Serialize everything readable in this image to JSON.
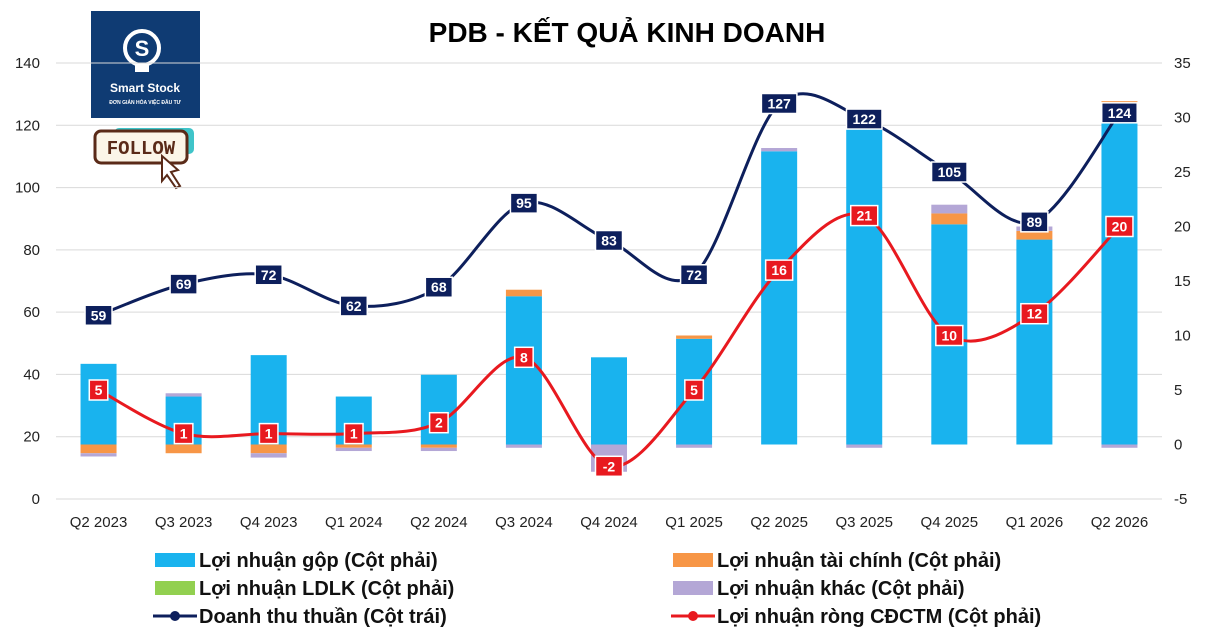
{
  "chart_data": {
    "type": "bar",
    "title": "PDB - KẾT QUẢ KINH DOANH",
    "categories": [
      "Q2 2023",
      "Q3 2023",
      "Q4 2023",
      "Q1 2024",
      "Q2 2024",
      "Q3 2024",
      "Q4 2024",
      "Q1 2025",
      "Q2 2025",
      "Q3 2025",
      "Q4 2025",
      "Q1 2026",
      "Q2 2026"
    ],
    "y_left": {
      "ylim": [
        0,
        140
      ],
      "ticks": [
        0,
        20,
        40,
        60,
        80,
        100,
        120,
        140
      ]
    },
    "y_right": {
      "ylim": [
        -5,
        35
      ],
      "ticks": [
        -5,
        0,
        5,
        10,
        15,
        20,
        25,
        30,
        35
      ]
    },
    "stacked": true,
    "grid": true,
    "legend_position": "bottom",
    "series": [
      {
        "name": "Lợi nhuận gộp (Cột phải)",
        "type": "bar",
        "axis": "right",
        "color": "#19b3ee",
        "values": [
          7.4,
          4.4,
          8.2,
          4.4,
          6.4,
          13.6,
          8.0,
          9.7,
          26.9,
          30.0,
          20.2,
          18.8,
          31.0
        ]
      },
      {
        "name": "Lợi nhuận tài chính (Cột phải)",
        "type": "bar",
        "axis": "right",
        "color": "#f79646",
        "values": [
          -0.8,
          -0.8,
          -0.8,
          -0.3,
          -0.3,
          0.6,
          0.0,
          0.3,
          0.0,
          0.4,
          1.0,
          0.8,
          0.5
        ]
      },
      {
        "name": "Lợi nhuận LDLK (Cột phải)",
        "type": "bar",
        "axis": "right",
        "color": "#92d050",
        "values": [
          0,
          0,
          0,
          0,
          0,
          0,
          0,
          0,
          0,
          0,
          0,
          0,
          0
        ]
      },
      {
        "name": "Lợi nhuận khác (Cột phải)",
        "type": "bar",
        "axis": "right",
        "color": "#b4a7d6",
        "values": [
          -0.3,
          0.3,
          -0.4,
          -0.3,
          -0.3,
          -0.3,
          -2.5,
          -0.3,
          0.3,
          -0.3,
          0.8,
          0.4,
          -0.3
        ]
      },
      {
        "name": "Doanh thu thuần (Cột trái)",
        "type": "line",
        "axis": "left",
        "color": "#0d1f5c",
        "values": [
          59,
          69,
          72,
          62,
          68,
          95,
          83,
          72,
          127,
          122,
          105,
          89,
          124
        ],
        "labels": [
          "59",
          "69",
          "72",
          "62",
          "68",
          "95",
          "83",
          "72",
          "127",
          "122",
          "105",
          "89",
          "124"
        ]
      },
      {
        "name": "Lợi nhuận ròng CĐCTM (Cột phải)",
        "type": "line",
        "axis": "right",
        "color": "#e8191f",
        "values": [
          5,
          1,
          1,
          1,
          2,
          8,
          -2,
          5,
          16,
          21,
          10,
          12,
          20
        ],
        "labels": [
          "5",
          "1",
          "1",
          "1",
          "2",
          "8",
          "-2",
          "5",
          "16",
          "21",
          "10",
          "12",
          "20"
        ]
      }
    ]
  },
  "logo": {
    "brand": "Smart Stock",
    "tagline": "ĐƠN GIẢN HÓA VIỆC ĐẦU TƯ",
    "badge": "FOLLOW"
  }
}
